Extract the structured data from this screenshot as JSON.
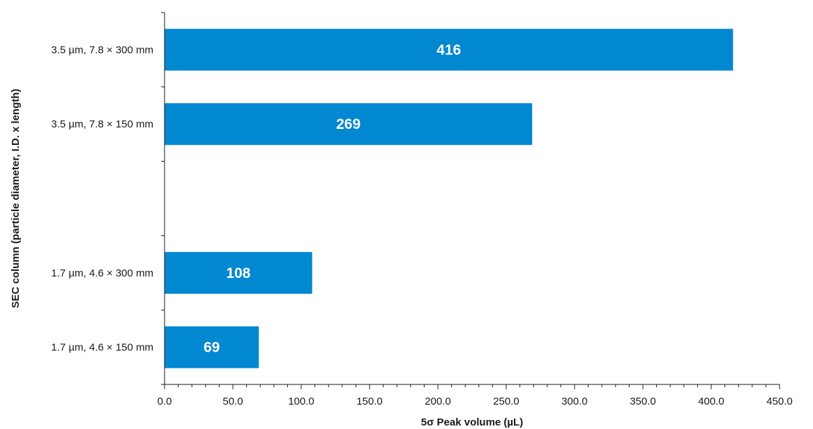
{
  "chart_data": {
    "type": "bar",
    "orientation": "horizontal",
    "categories": [
      "3.5 µm, 7.8 × 300 mm",
      "3.5 µm, 7.8 × 150 mm",
      "",
      "1.7 µm, 4.6 × 300 mm",
      "1.7 µm, 4.6 × 150 mm"
    ],
    "values": [
      416,
      269,
      null,
      108,
      69
    ],
    "data_labels": [
      "416",
      "269",
      "",
      "108",
      "69"
    ],
    "title": "",
    "xlabel": "5σ Peak volume (µL)",
    "ylabel": "SEC column (particle diameter, I.D. x length)",
    "xlim": [
      0,
      450
    ],
    "xticks": [
      "0.0",
      "50.0",
      "100.0",
      "150.0",
      "200.0",
      "250.0",
      "300.0",
      "350.0",
      "400.0",
      "450.0"
    ],
    "grid": false,
    "legend": "none",
    "bar_color": "#0288d1"
  }
}
